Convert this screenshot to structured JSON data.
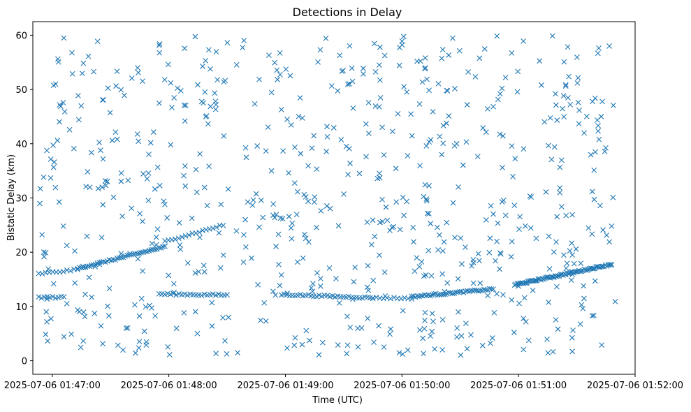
{
  "chart_data": {
    "type": "scatter",
    "title": "Detections in Delay",
    "xlabel": "Time (UTC)",
    "ylabel": "Bistatic Delay (km)",
    "x_unit": "seconds after 2025-07-06 01:46:40 UTC",
    "xlim": [
      "2025-07-06 01:46:50",
      "2025-07-06 01:52:00"
    ],
    "ylim": [
      -2.5,
      62.5
    ],
    "x_ticks": [
      "2025-07-06 01:47:00",
      "2025-07-06 01:48:00",
      "2025-07-06 01:49:00",
      "2025-07-06 01:50:00",
      "2025-07-06 01:51:00",
      "2025-07-06 01:52:00"
    ],
    "y_ticks": [
      0,
      10,
      20,
      30,
      40,
      50,
      60
    ],
    "grid": false,
    "legend": "none",
    "marker": "x",
    "color": "#1f77b4",
    "tracks": [
      {
        "x_start": "2025-07-06 01:46:53",
        "x_end": "2025-07-06 01:47:13",
        "y_start": 16.0,
        "y_end": 16.8,
        "count": 12
      },
      {
        "x_start": "2025-07-06 01:46:53",
        "x_end": "2025-07-06 01:47:06",
        "y_start": 11.7,
        "y_end": 11.7,
        "count": 10
      },
      {
        "x_start": "2025-07-06 01:47:13",
        "x_end": "2025-07-06 01:47:58",
        "y_start": 17.0,
        "y_end": 21.0,
        "count": 45
      },
      {
        "x_start": "2025-07-06 01:47:58",
        "x_end": "2025-07-06 01:48:28",
        "y_start": 22.0,
        "y_end": 25.0,
        "count": 18
      },
      {
        "x_start": "2025-07-06 01:47:55",
        "x_end": "2025-07-06 01:48:30",
        "y_start": 12.3,
        "y_end": 12.1,
        "count": 25
      },
      {
        "x_start": "2025-07-06 01:48:58",
        "x_end": "2025-07-06 01:49:45",
        "y_start": 12.2,
        "y_end": 11.6,
        "count": 35
      },
      {
        "x_start": "2025-07-06 01:49:45",
        "x_end": "2025-07-06 01:50:05",
        "y_start": 11.6,
        "y_end": 11.5,
        "count": 12
      },
      {
        "x_start": "2025-07-06 01:50:05",
        "x_end": "2025-07-06 01:50:47",
        "y_start": 11.8,
        "y_end": 13.2,
        "count": 45
      },
      {
        "x_start": "2025-07-06 01:50:58",
        "x_end": "2025-07-06 01:51:48",
        "y_start": 14.0,
        "y_end": 17.8,
        "count": 75
      }
    ]
  }
}
